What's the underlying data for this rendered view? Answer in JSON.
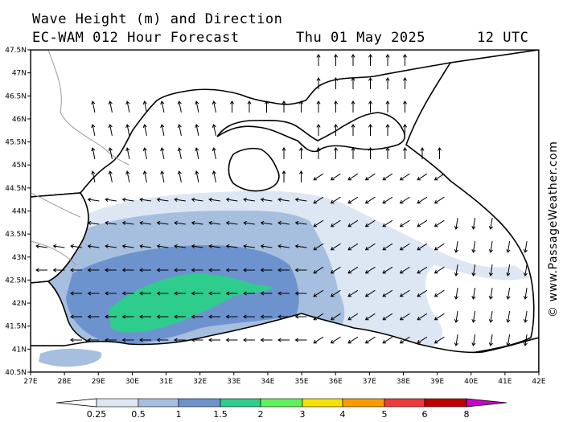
{
  "header": {
    "title": "Wave Height (m) and Direction",
    "model": "EC-WAM 012 Hour Forecast",
    "date": "Thu 01 May 2025",
    "time": "12 UTC"
  },
  "credit": "© www.PassageWeather.com",
  "axes": {
    "lat_labels": [
      "47.5N",
      "47N",
      "46.5N",
      "46N",
      "45.5N",
      "45N",
      "44.5N",
      "44N",
      "43.5N",
      "43N",
      "42.5N",
      "42N",
      "41.5N",
      "41N",
      "40.5N"
    ],
    "lon_labels": [
      "27E",
      "28E",
      "29E",
      "30E",
      "31E",
      "32E",
      "33E",
      "34E",
      "35E",
      "36E",
      "37E",
      "38E",
      "39E",
      "40E",
      "41E",
      "42E"
    ]
  },
  "legend": {
    "labels": [
      "0.25",
      "0.5",
      "1",
      "1.5",
      "2",
      "3",
      "4",
      "5",
      "6",
      "8"
    ],
    "colors": [
      "#ffffff",
      "#dde6f3",
      "#a7bfde",
      "#6d93cf",
      "#2ecc8d",
      "#5ef25a",
      "#f5e200",
      "#ff9a00",
      "#f03a3a",
      "#c00000",
      "#cc00cc"
    ]
  },
  "colors": {
    "land": "#ffffff",
    "coast": "#000000",
    "border": "#999999"
  }
}
